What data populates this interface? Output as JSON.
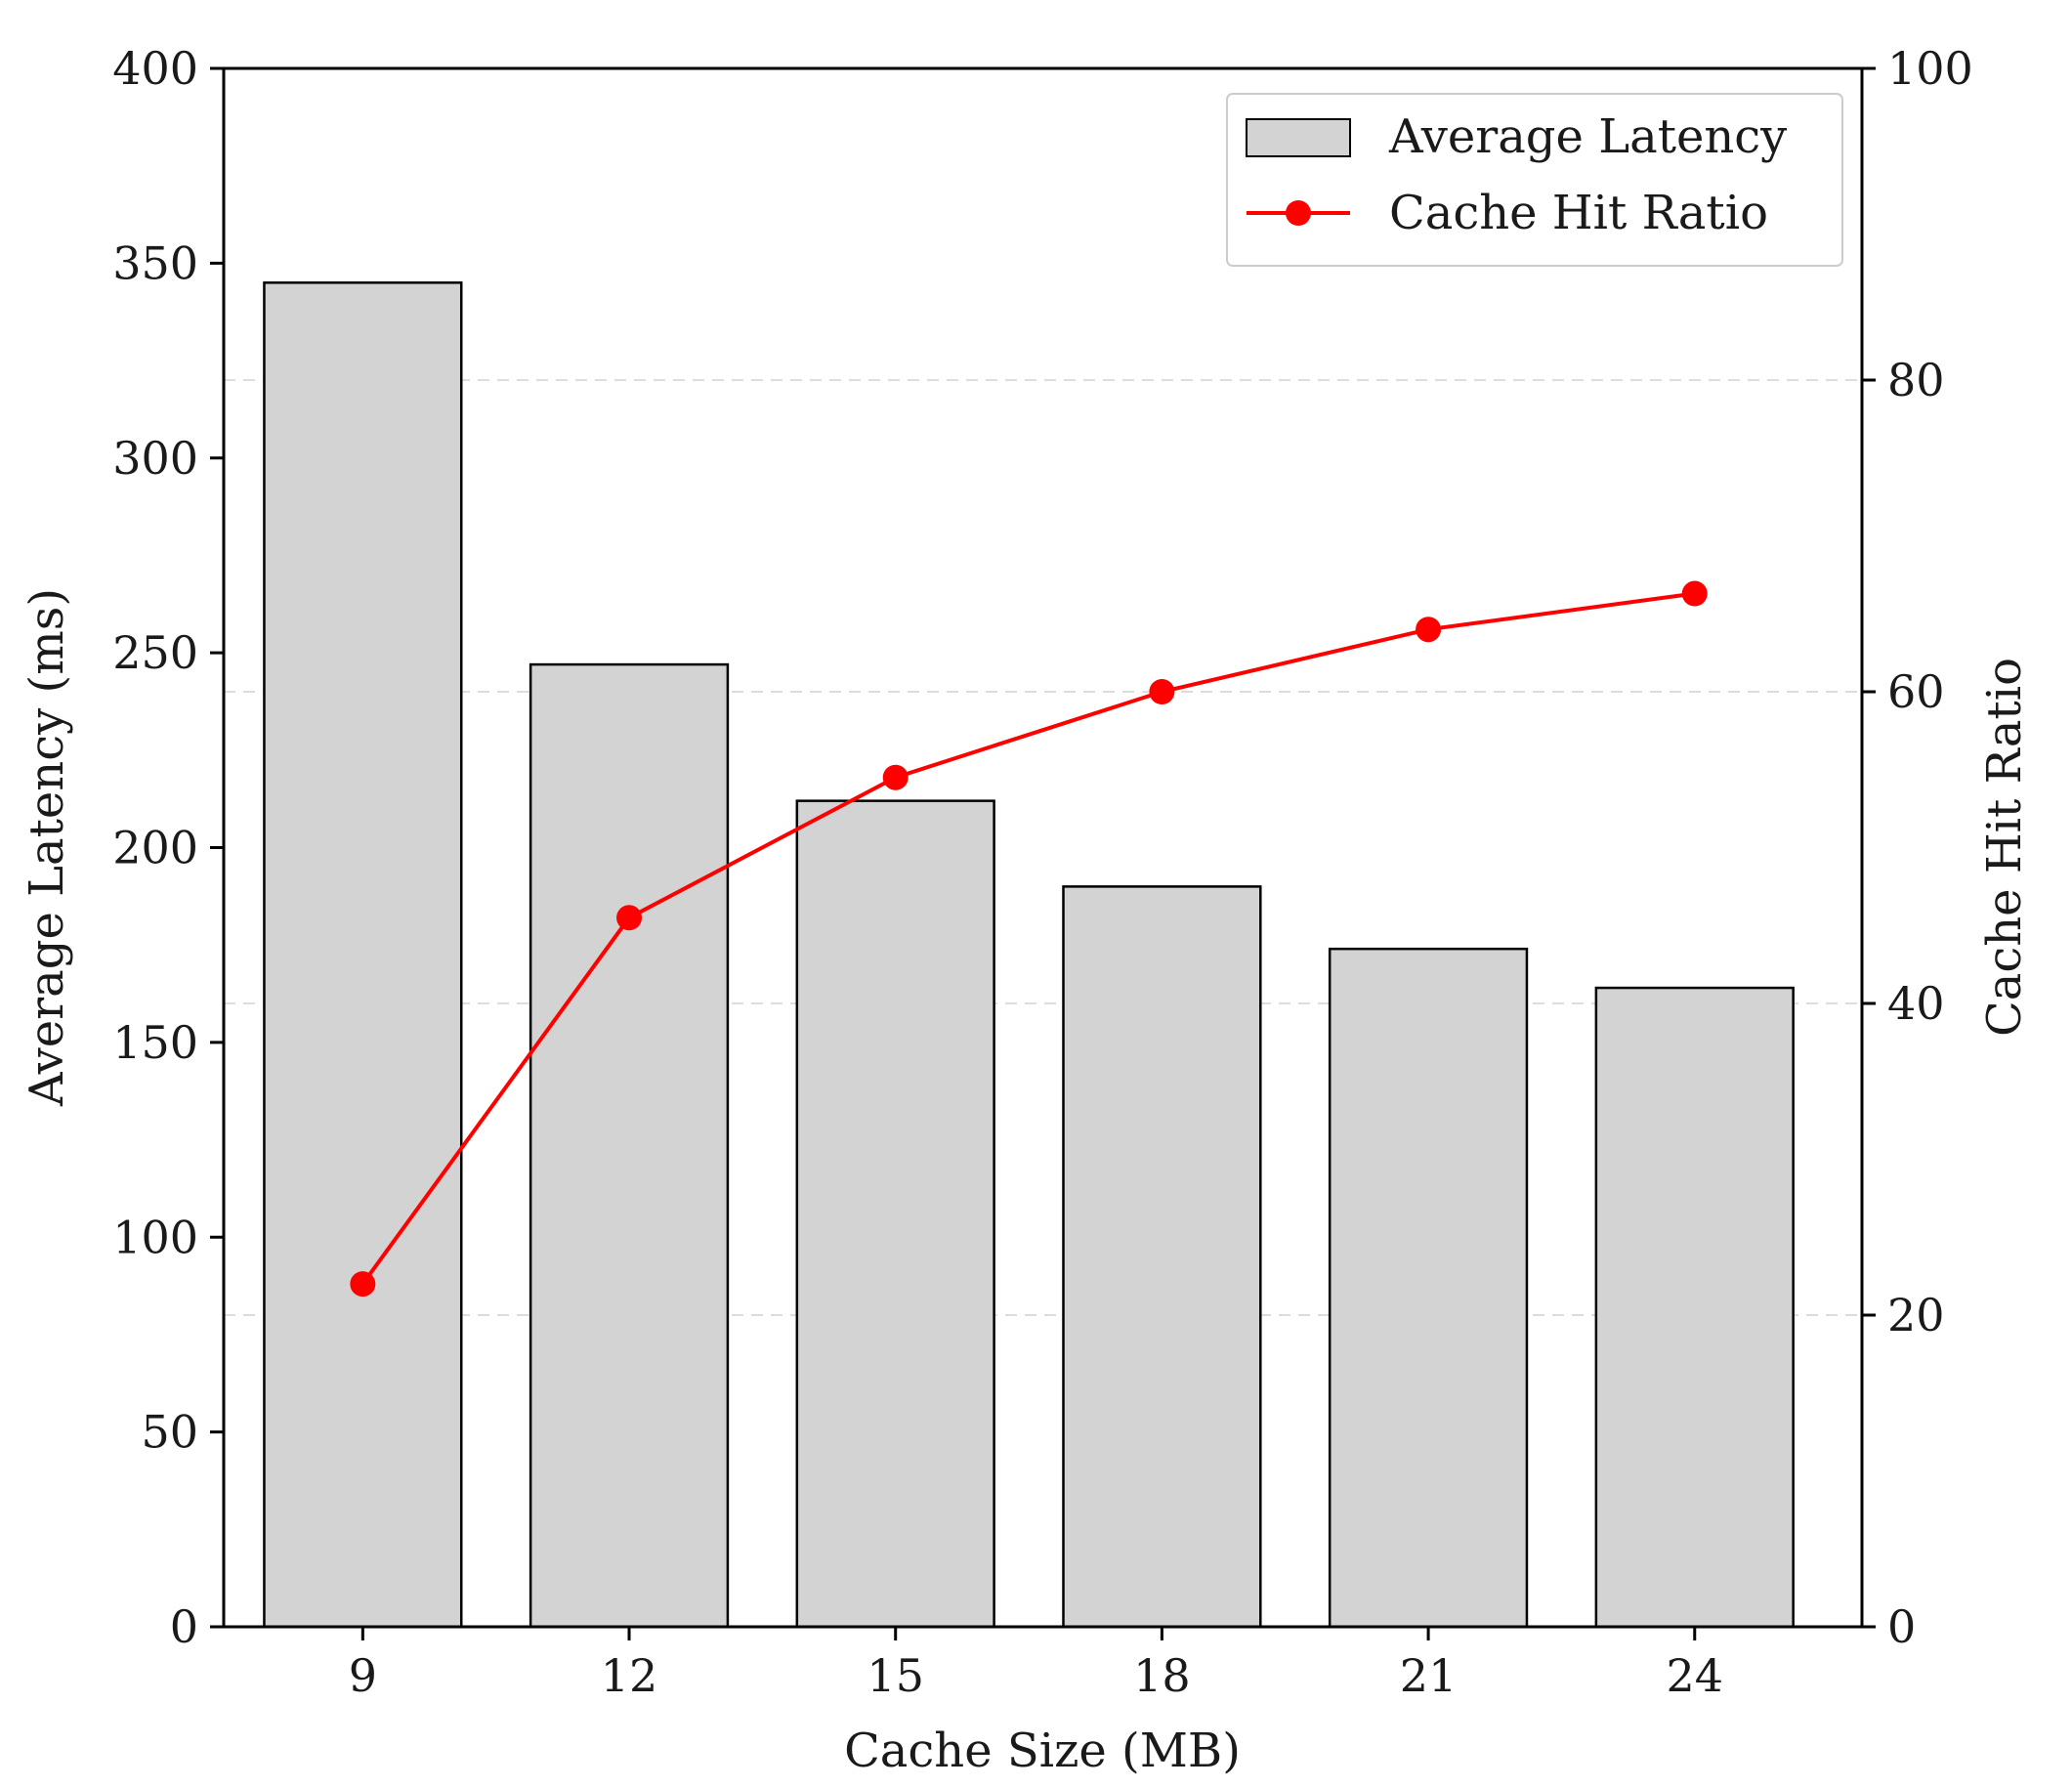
{
  "chart_data": {
    "type": "bar",
    "title": "",
    "xlabel": "Cache Size (MB)",
    "ylabel": "Average Latency (ms)",
    "y2label": "Cache Hit Ratio",
    "categories": [
      "9",
      "12",
      "15",
      "18",
      "21",
      "24"
    ],
    "ylim": [
      0,
      400
    ],
    "y2lim": [
      0,
      100
    ],
    "yticks": [
      "0",
      "50",
      "100",
      "150",
      "200",
      "250",
      "300",
      "350",
      "400"
    ],
    "y2ticks": [
      "0",
      "20",
      "40",
      "60",
      "80",
      "100"
    ],
    "series": [
      {
        "name": "Average Latency",
        "type": "bar",
        "axis": "left",
        "values": [
          345,
          247,
          212,
          190,
          174,
          164
        ],
        "color": "#d3d3d3",
        "edgecolor": "#000000"
      },
      {
        "name": "Cache Hit Ratio",
        "type": "line",
        "axis": "right",
        "values": [
          22,
          45.5,
          54.5,
          60,
          64,
          66.3
        ],
        "color": "#ff0000",
        "marker": "circle"
      }
    ],
    "grid": "horizontal dashed, right axis",
    "legend": "top-right"
  }
}
